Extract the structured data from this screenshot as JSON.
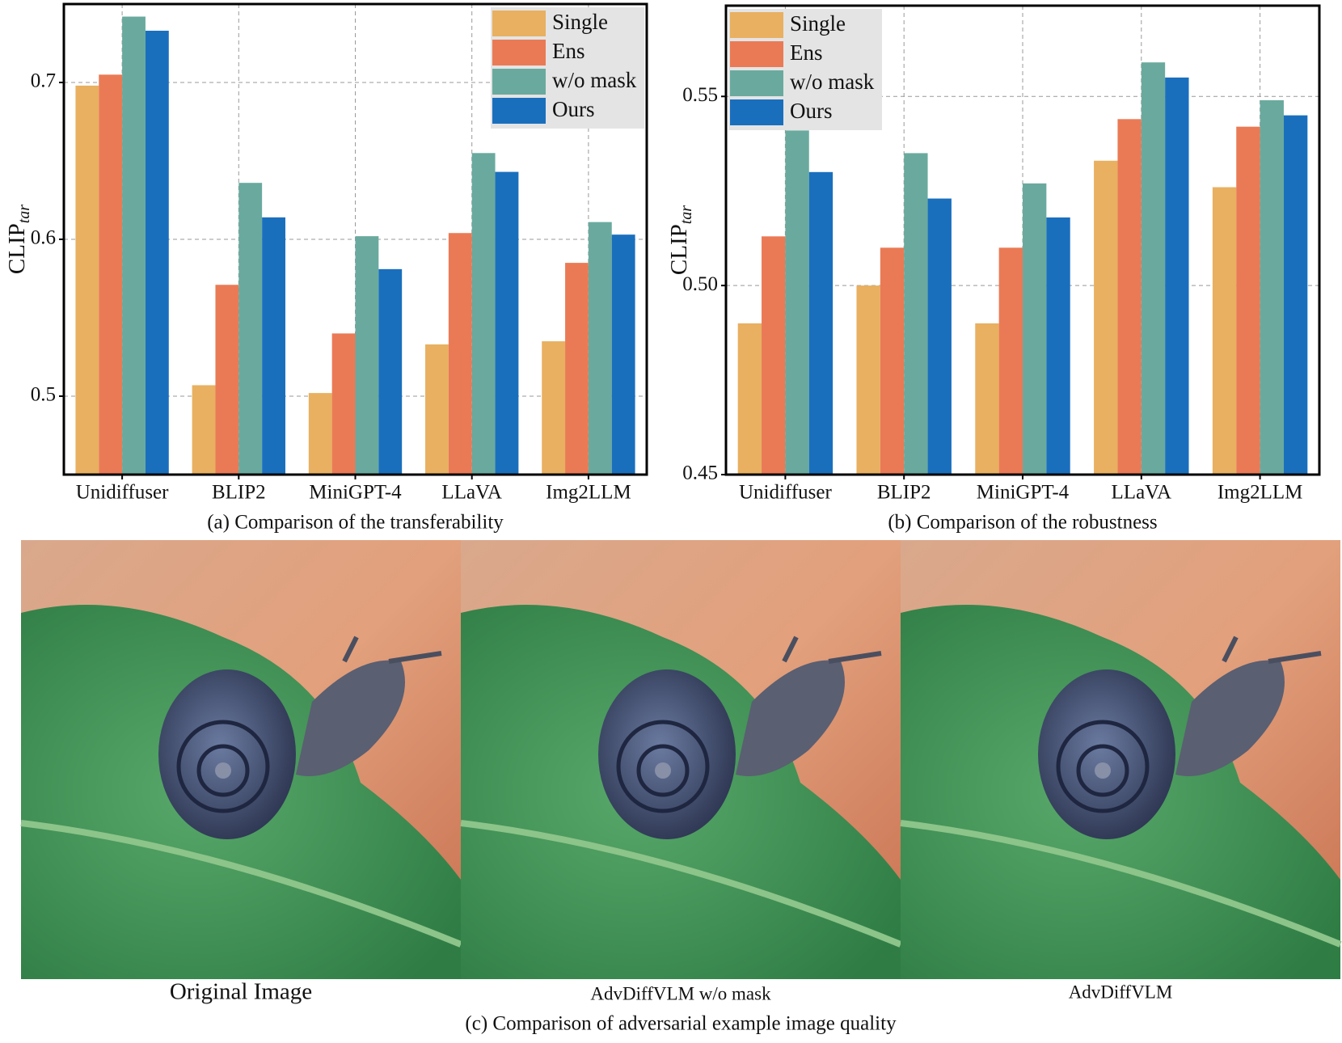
{
  "chart_data": [
    {
      "type": "bar",
      "caption": "(a) Comparison of the transferability",
      "ylabel": "CLIP",
      "ylabel_subscript": "tar",
      "categories": [
        "Unidiffuser",
        "BLIP2",
        "MiniGPT-4",
        "LLaVA",
        "Img2LLM"
      ],
      "series": [
        {
          "name": "Single",
          "color": "#e8b060",
          "values": [
            0.698,
            0.507,
            0.502,
            0.533,
            0.535
          ]
        },
        {
          "name": "Ens",
          "color": "#ea7a55",
          "values": [
            0.705,
            0.571,
            0.54,
            0.604,
            0.585
          ]
        },
        {
          "name": "w/o mask",
          "color": "#6aaa9e",
          "values": [
            0.742,
            0.636,
            0.602,
            0.655,
            0.611
          ]
        },
        {
          "name": "Ours",
          "color": "#1a6fbd",
          "values": [
            0.733,
            0.614,
            0.581,
            0.643,
            0.603
          ]
        }
      ],
      "ylim": [
        0.45,
        0.75
      ],
      "yticks": [
        0.5,
        0.6,
        0.7
      ],
      "grid": true,
      "legend": "upper right"
    },
    {
      "type": "bar",
      "caption": "(b) Comparison of the robustness",
      "ylabel": "CLIP",
      "ylabel_subscript": "tar",
      "categories": [
        "Unidiffuser",
        "BLIP2",
        "MiniGPT-4",
        "LLaVA",
        "Img2LLM"
      ],
      "series": [
        {
          "name": "Single",
          "color": "#e8b060",
          "values": [
            0.49,
            0.5,
            0.49,
            0.533,
            0.526
          ]
        },
        {
          "name": "Ens",
          "color": "#ea7a55",
          "values": [
            0.513,
            0.51,
            0.51,
            0.544,
            0.542
          ]
        },
        {
          "name": "w/o mask",
          "color": "#6aaa9e",
          "values": [
            0.541,
            0.535,
            0.527,
            0.559,
            0.549
          ]
        },
        {
          "name": "Ours",
          "color": "#1a6fbd",
          "values": [
            0.53,
            0.523,
            0.518,
            0.555,
            0.545
          ]
        }
      ],
      "ylim": [
        0.45,
        0.574
      ],
      "yticks": [
        0.45,
        {
          "value": 0.5,
          "label": "0.50"
        },
        0.55
      ],
      "grid": true,
      "legend": "upper left"
    }
  ],
  "figure": {
    "images": [
      {
        "caption": "Original Image"
      },
      {
        "caption": "AdvDiffVLM w/o mask"
      },
      {
        "caption": "AdvDiffVLM"
      }
    ],
    "caption": "(c) Comparison of  adversarial example image quality"
  }
}
